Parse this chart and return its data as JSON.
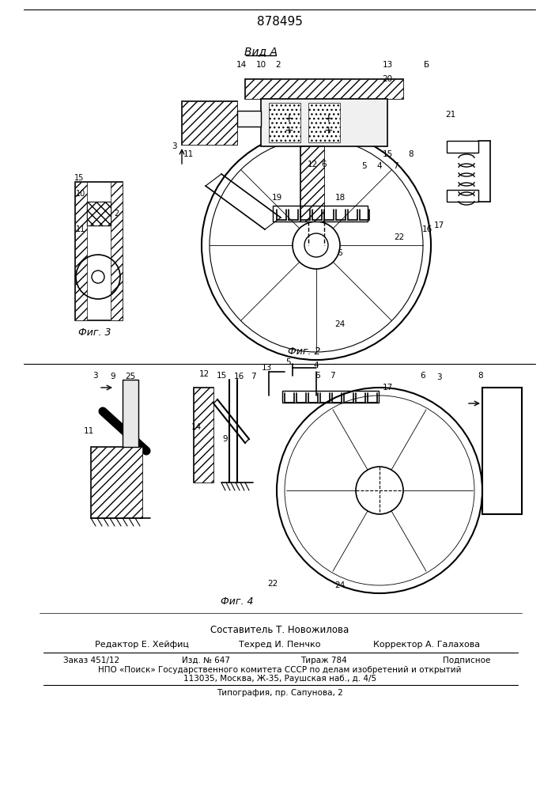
{
  "patent_number": "878495",
  "view_label": "Вид А",
  "fig2_label": "Фиг. 2",
  "fig3_label": "Фиг. 3",
  "fig4_label": "Фиг. 4",
  "footer_composer": "Составитель Т. Новожилова",
  "footer_editor": "Редактор Е. Хейфиц",
  "footer_tech": "Техред И. Пенчко",
  "footer_corrector": "Корректор А. Галахова",
  "footer_order": "Заказ 451/12",
  "footer_izd": "Изд. № 647",
  "footer_tirazh": "Тираж 784",
  "footer_podp": "Подписное",
  "footer_npo": "НПО «Поиск» Государственного комитета СССР по делам изобретений и открытий",
  "footer_addr": "113035, Москва, Ж-35, Раушская наб., д. 4/5",
  "footer_tipograf": "Типография, пр. Сапунова, 2",
  "bg_color": "#ffffff",
  "line_color": "#000000",
  "text_color": "#000000"
}
